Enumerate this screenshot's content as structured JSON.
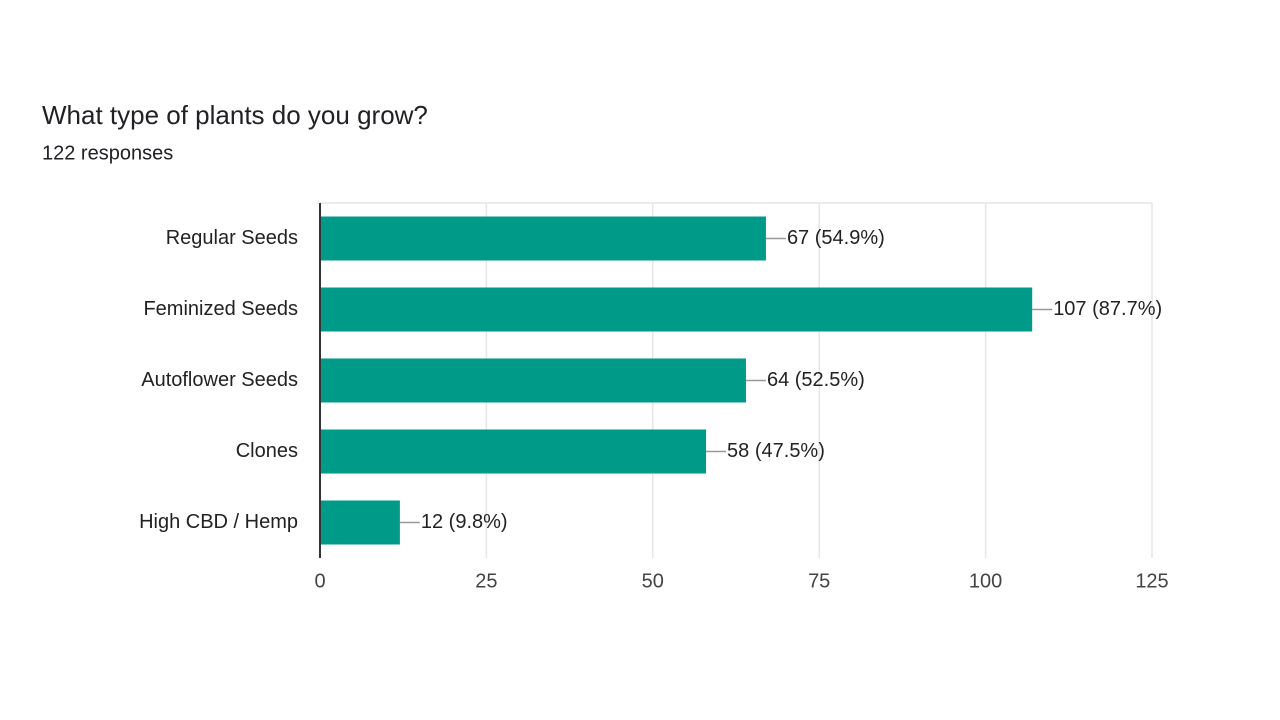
{
  "chart_data": {
    "type": "bar",
    "orientation": "horizontal",
    "title": "What type of plants do you grow?",
    "subtitle": "122 responses",
    "categories": [
      "Regular Seeds",
      "Feminized Seeds",
      "Autoflower Seeds",
      "Clones",
      "High CBD / Hemp"
    ],
    "values": [
      67,
      107,
      64,
      58,
      12
    ],
    "value_labels": [
      "67 (54.9%)",
      "107 (87.7%)",
      "64 (52.5%)",
      "58 (47.5%)",
      "12 (9.8%)"
    ],
    "color": "#009a88",
    "xlim": [
      0,
      125
    ],
    "xticks": [
      0,
      25,
      50,
      75,
      100,
      125
    ],
    "grid": true
  }
}
